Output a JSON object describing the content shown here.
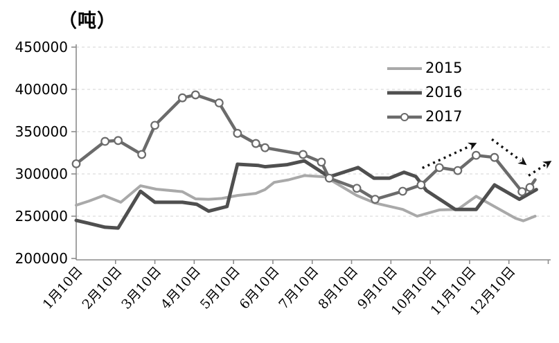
{
  "chart": {
    "unit": "（吨）",
    "y_axis": {
      "ticks": [
        450000,
        400000,
        350000,
        300000,
        250000,
        200000
      ],
      "min": 200000,
      "max": 450000,
      "tick_step": 50000
    },
    "x_axis": {
      "month_labels": [
        "1月10日",
        "2月10日",
        "3月10日",
        "4月10日",
        "5月10日",
        "6月10日",
        "7月10日",
        "8月10日",
        "9月10日",
        "10月10日",
        "11月10日",
        "12月10日"
      ]
    },
    "legend": [
      {
        "label": "2015"
      },
      {
        "label": "2016"
      },
      {
        "label": "2017"
      }
    ]
  },
  "chart_data": {
    "type": "line",
    "title": "（吨）",
    "ylabel": "吨",
    "ylim": [
      200000,
      450000
    ],
    "grid": "dashed horizontal lines every 50000",
    "legend_position": "upper right inside plot",
    "x_unit": "ten-day index d: d=0 is 1月10日, 3 slots per month (10日/20日/30日), d=33 is 12月10日",
    "x_tick_positions_d": [
      0,
      3,
      6,
      9,
      12,
      15,
      18,
      21,
      24,
      27,
      30,
      33
    ],
    "x_tick_labels": [
      "1月10日",
      "2月10日",
      "3月10日",
      "4月10日",
      "5月10日",
      "6月10日",
      "7月10日",
      "8月10日",
      "9月10日",
      "10月10日",
      "11月10日",
      "12月10日"
    ],
    "series": [
      {
        "name": "2015",
        "color": "#a9a9a9",
        "width": 4,
        "marker": "none",
        "points": [
          [
            0,
            263000
          ],
          [
            1,
            268000
          ],
          [
            2.1,
            274500
          ],
          [
            3.4,
            266500
          ],
          [
            4.9,
            286000
          ],
          [
            6.1,
            282000
          ],
          [
            8.1,
            279000
          ],
          [
            9.1,
            270500
          ],
          [
            10.1,
            270000
          ],
          [
            11.1,
            271000
          ],
          [
            12.3,
            274500
          ],
          [
            13.7,
            277000
          ],
          [
            14.4,
            281500
          ],
          [
            15.1,
            290000
          ],
          [
            16.2,
            293000
          ],
          [
            17.4,
            298000
          ],
          [
            19,
            296500
          ],
          [
            21.4,
            274500
          ],
          [
            22.8,
            265500
          ],
          [
            24.9,
            258000
          ],
          [
            26,
            250000
          ],
          [
            27.7,
            257500
          ],
          [
            29.1,
            258000
          ],
          [
            30.5,
            273500
          ],
          [
            33.5,
            247500
          ],
          [
            34.1,
            244500
          ],
          [
            35,
            250000
          ]
        ]
      },
      {
        "name": "2016",
        "color": "#4f4f4f",
        "width": 5,
        "marker": "none",
        "points": [
          [
            0,
            245000
          ],
          [
            1,
            241500
          ],
          [
            2.2,
            237000
          ],
          [
            3.2,
            236000
          ],
          [
            4.9,
            279500
          ],
          [
            6,
            266500
          ],
          [
            8.1,
            266500
          ],
          [
            9.2,
            264000
          ],
          [
            10.1,
            256000
          ],
          [
            11.5,
            261500
          ],
          [
            12.3,
            311500
          ],
          [
            13.9,
            310000
          ],
          [
            14.4,
            308500
          ],
          [
            16.1,
            311000
          ],
          [
            17.4,
            315500
          ],
          [
            19.3,
            296500
          ],
          [
            21.5,
            307500
          ],
          [
            22.7,
            295000
          ],
          [
            23.9,
            295000
          ],
          [
            25,
            302000
          ],
          [
            25.9,
            297000
          ],
          [
            26.7,
            280500
          ],
          [
            28.9,
            258000
          ],
          [
            30.5,
            258000
          ],
          [
            31.9,
            287000
          ],
          [
            33.8,
            270000
          ],
          [
            35.1,
            281500
          ]
        ]
      },
      {
        "name": "2017",
        "color": "#6b6b6b",
        "width": 4.5,
        "marker": "circle",
        "marker_fill": "#ffffff",
        "last_point_no_marker": true,
        "points": [
          [
            0,
            312000
          ],
          [
            2.2,
            338500
          ],
          [
            3.2,
            339500
          ],
          [
            5,
            323000
          ],
          [
            6,
            357500
          ],
          [
            8.1,
            390000
          ],
          [
            9.1,
            393500
          ],
          [
            10.9,
            384000
          ],
          [
            12.3,
            348000
          ],
          [
            13.7,
            336000
          ],
          [
            14.4,
            331000
          ],
          [
            17.3,
            323000
          ],
          [
            18.7,
            314000
          ],
          [
            19.3,
            295000
          ],
          [
            21.4,
            283000
          ],
          [
            22.8,
            270000
          ],
          [
            24.9,
            279500
          ],
          [
            26.3,
            287000
          ],
          [
            27.7,
            307500
          ],
          [
            29.1,
            304000
          ],
          [
            30.5,
            322000
          ],
          [
            31.9,
            319500
          ],
          [
            34,
            279000
          ],
          [
            34.6,
            284000
          ],
          [
            35,
            293000
          ]
        ]
      }
    ],
    "annotations": {
      "arrows": [
        {
          "name": "trend-up-arrow-oct-nov",
          "from_d": 26.4,
          "from_v": 307000,
          "to_d": 30.6,
          "to_v": 337000,
          "style": "dotted",
          "color": "#111111"
        },
        {
          "name": "trend-down-arrow-nov-dec",
          "from_d": 31.7,
          "from_v": 341000,
          "to_d": 34.4,
          "to_v": 310000,
          "style": "dotted",
          "color": "#111111"
        },
        {
          "name": "trend-up-arrow-dec-end",
          "from_d": 34.5,
          "from_v": 298000,
          "to_d": 36.3,
          "to_v": 316000,
          "style": "dotted",
          "color": "#111111"
        }
      ]
    },
    "axis_color": "#8c8c8c",
    "gridline_color": "#dcdcdc",
    "text_color": "#000000"
  }
}
